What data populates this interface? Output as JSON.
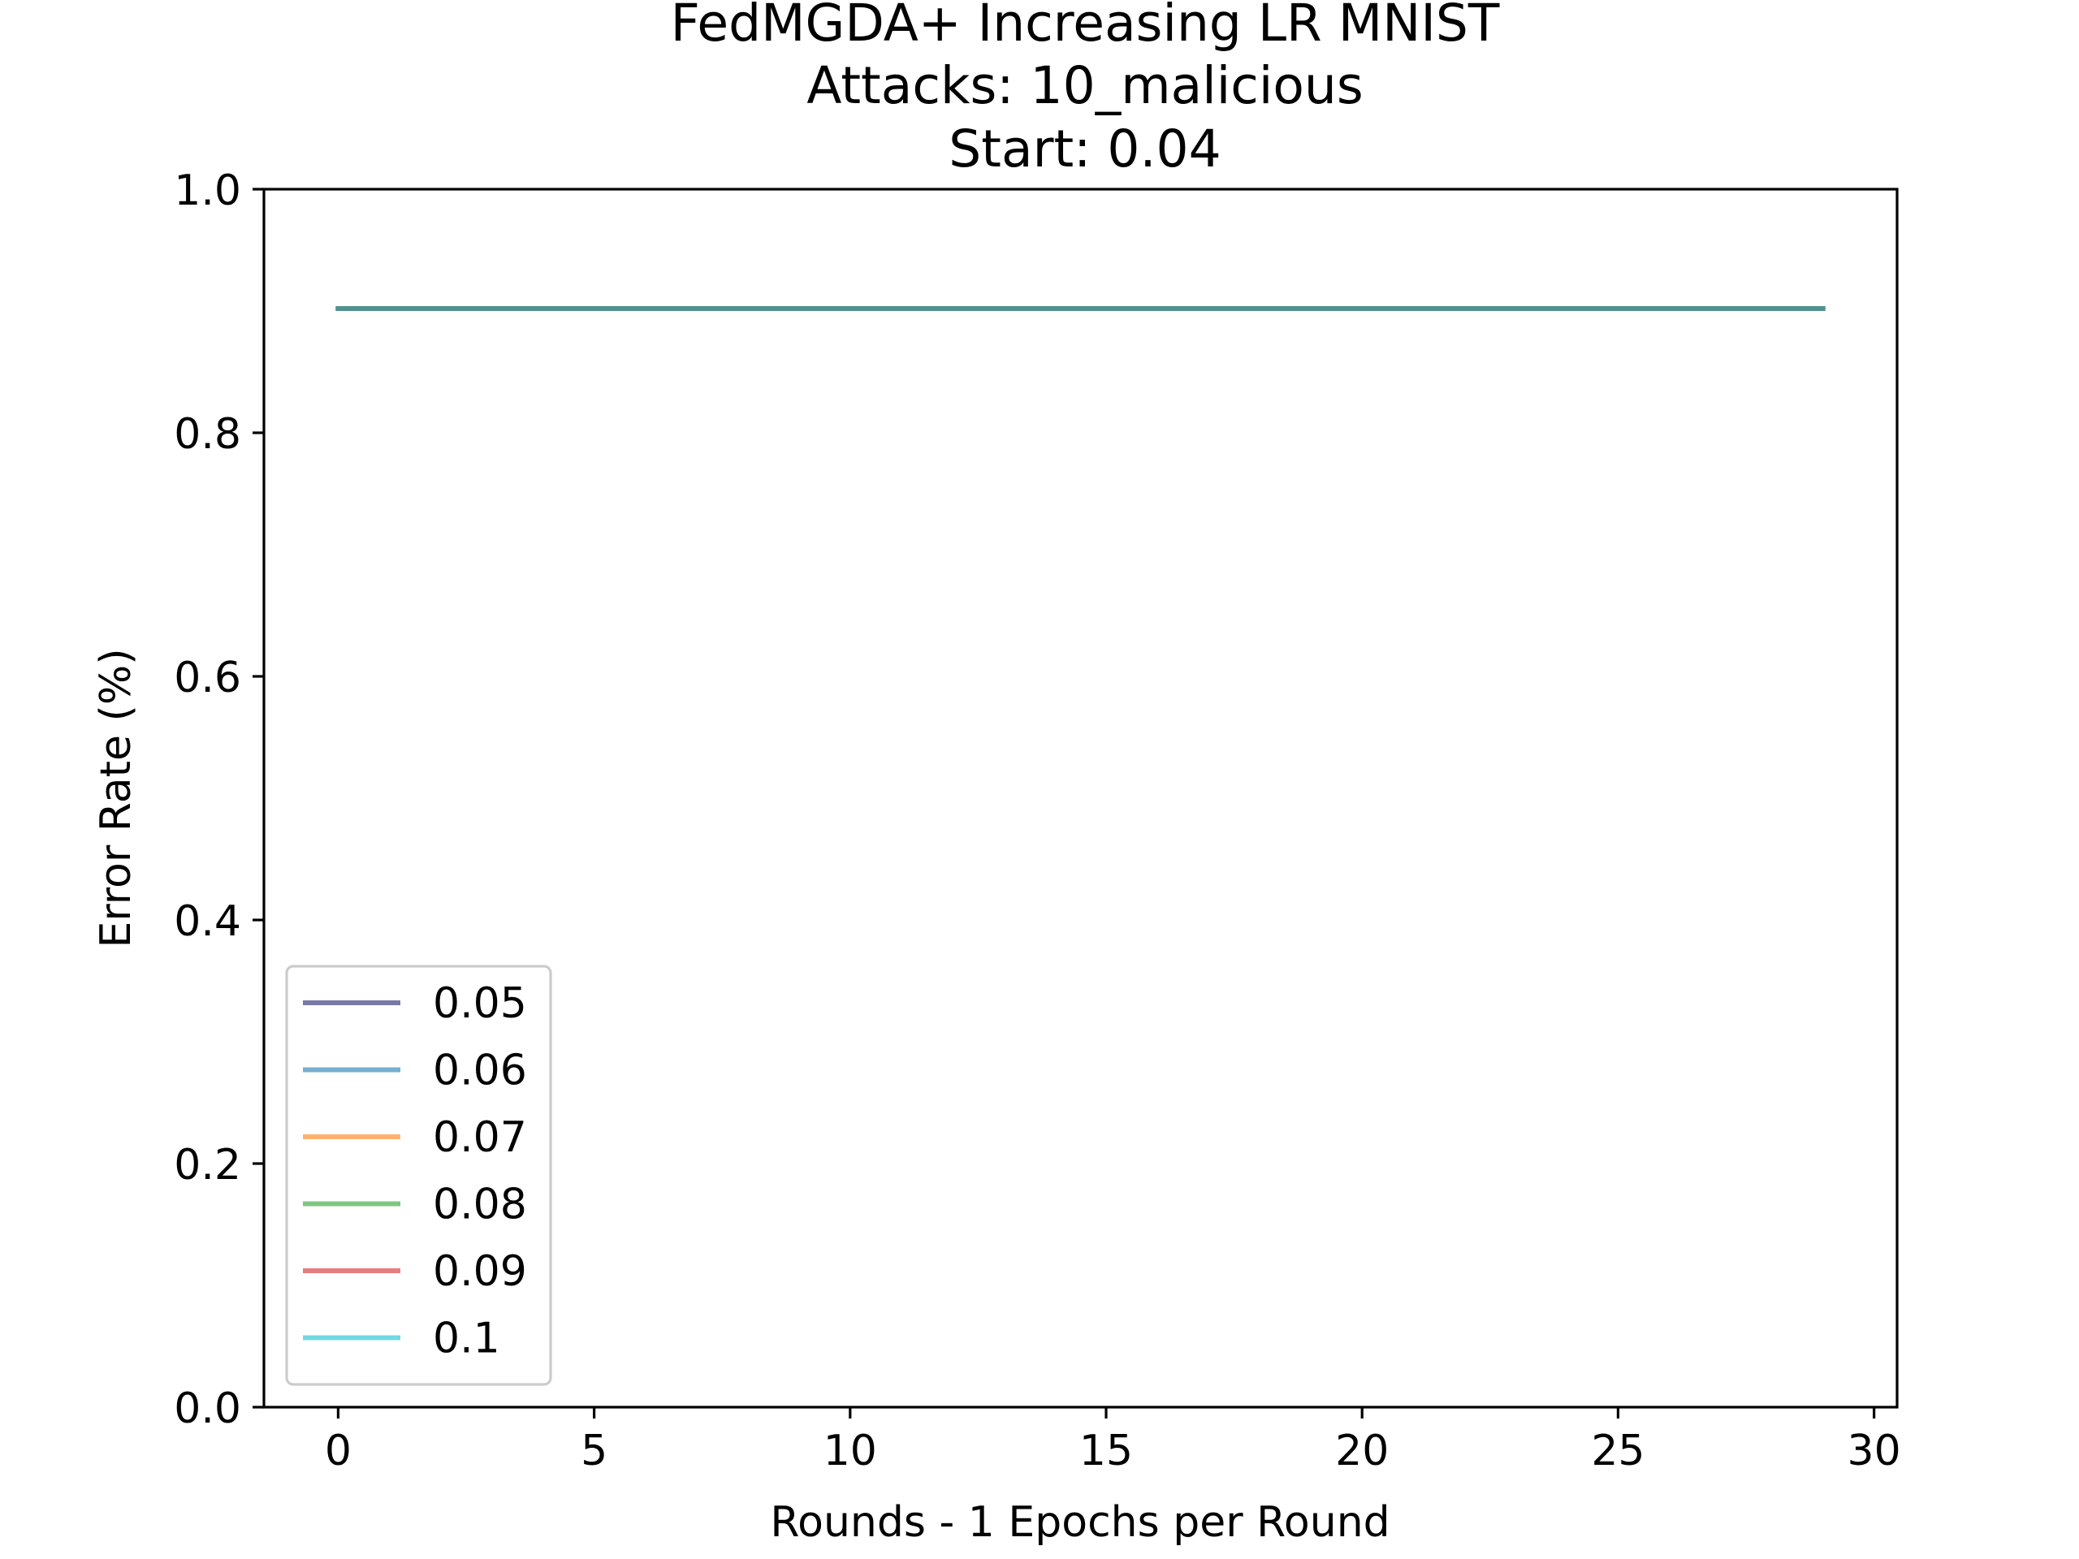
{
  "chart_data": {
    "type": "line",
    "title_lines": [
      "FedMGDA+ Increasing LR MNIST",
      "Attacks: 10_malicious",
      "Start: 0.04"
    ],
    "xlabel": "Rounds - 1 Epochs per Round",
    "ylabel": "Error Rate (%)",
    "xlim": [
      -1.45,
      30.45
    ],
    "ylim": [
      0,
      1
    ],
    "x_ticks": [
      0,
      5,
      10,
      15,
      20,
      25,
      30
    ],
    "x_tick_labels": [
      "0",
      "5",
      "10",
      "15",
      "20",
      "25",
      "30"
    ],
    "y_ticks": [
      0,
      0.2,
      0.4,
      0.6,
      0.8,
      1.0
    ],
    "y_tick_labels": [
      "0.0",
      "0.2",
      "0.4",
      "0.6",
      "0.8",
      "1.0"
    ],
    "grid": false,
    "legend_position": "lower-left",
    "x": [
      0,
      1,
      2,
      3,
      4,
      5,
      6,
      7,
      8,
      9,
      10,
      11,
      12,
      13,
      14,
      15,
      16,
      17,
      18,
      19,
      20,
      21,
      22,
      23,
      24,
      25,
      26,
      27,
      28,
      29
    ],
    "series": [
      {
        "name": "0.05",
        "color": "#1f1f6b",
        "values": [
          0.902,
          0.902,
          0.902,
          0.902,
          0.902,
          0.902,
          0.902,
          0.902,
          0.902,
          0.902,
          0.902,
          0.902,
          0.902,
          0.902,
          0.902,
          0.902,
          0.902,
          0.902,
          0.902,
          0.902,
          0.902,
          0.902,
          0.902,
          0.902,
          0.902,
          0.902,
          0.902,
          0.902,
          0.902,
          0.902
        ]
      },
      {
        "name": "0.06",
        "color": "#1f77b4",
        "values": [
          0.902,
          0.902,
          0.902,
          0.902,
          0.902,
          0.902,
          0.902,
          0.902,
          0.902,
          0.902,
          0.902,
          0.902,
          0.902,
          0.902,
          0.902,
          0.902,
          0.902,
          0.902,
          0.902,
          0.902,
          0.902,
          0.902,
          0.902,
          0.902,
          0.902,
          0.902,
          0.902,
          0.902,
          0.902,
          0.902
        ]
      },
      {
        "name": "0.07",
        "color": "#ff7f0e",
        "values": [
          0.902,
          0.902,
          0.902,
          0.902,
          0.902,
          0.902,
          0.902,
          0.902,
          0.902,
          0.902,
          0.902,
          0.902,
          0.902,
          0.902,
          0.902,
          0.902,
          0.902,
          0.902,
          0.902,
          0.902,
          0.902,
          0.902,
          0.902,
          0.902,
          0.902,
          0.902,
          0.902,
          0.902,
          0.902,
          0.902
        ]
      },
      {
        "name": "0.08",
        "color": "#2ca02c",
        "values": [
          0.902,
          0.902,
          0.902,
          0.902,
          0.902,
          0.902,
          0.902,
          0.902,
          0.902,
          0.902,
          0.902,
          0.902,
          0.902,
          0.902,
          0.902,
          0.902,
          0.902,
          0.902,
          0.902,
          0.902,
          0.902,
          0.902,
          0.902,
          0.902,
          0.902,
          0.902,
          0.902,
          0.902,
          0.902,
          0.902
        ]
      },
      {
        "name": "0.09",
        "color": "#d62728",
        "values": [
          0.902,
          0.902,
          0.902,
          0.902,
          0.902,
          0.902,
          0.902,
          0.902,
          0.902,
          0.902,
          0.902,
          0.902,
          0.902,
          0.902,
          0.902,
          0.902,
          0.902,
          0.902,
          0.902,
          0.902,
          0.902,
          0.902,
          0.902,
          0.902,
          0.902,
          0.902,
          0.902,
          0.902,
          0.902,
          0.902
        ]
      },
      {
        "name": "0.1",
        "color": "#17becf",
        "values": [
          0.902,
          0.902,
          0.902,
          0.902,
          0.902,
          0.902,
          0.902,
          0.902,
          0.902,
          0.902,
          0.902,
          0.902,
          0.902,
          0.902,
          0.902,
          0.902,
          0.902,
          0.902,
          0.902,
          0.902,
          0.902,
          0.902,
          0.902,
          0.902,
          0.902,
          0.902,
          0.902,
          0.902,
          0.902,
          0.902
        ]
      }
    ]
  }
}
